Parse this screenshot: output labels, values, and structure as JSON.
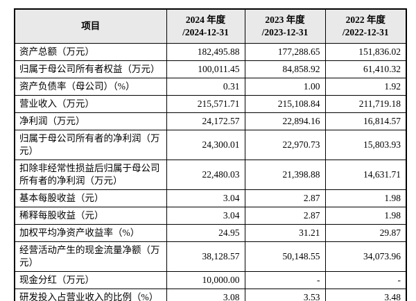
{
  "colors": {
    "header_bg": "#e9e9e9",
    "border": "#000000",
    "text": "#000000",
    "page_bg": "#ffffff"
  },
  "table": {
    "header": {
      "item_label": "项目",
      "year_columns": [
        {
          "line1": "2024 年度",
          "line2": "/2024-12-31"
        },
        {
          "line1": "2023 年度",
          "line2": "/2023-12-31"
        },
        {
          "line1": "2022 年度",
          "line2": "/2022-12-31"
        }
      ]
    },
    "rows": [
      {
        "label": "资产总额（万元）",
        "values": [
          "182,495.88",
          "177,288.65",
          "151,836.02"
        ]
      },
      {
        "label": "归属于母公司所有者权益（万元）",
        "values": [
          "100,011.45",
          "84,858.92",
          "61,410.32"
        ]
      },
      {
        "label": "资产负债率（母公司）（%）",
        "values": [
          "0.31",
          "1.00",
          "1.92"
        ]
      },
      {
        "label": "营业收入（万元）",
        "values": [
          "215,571.71",
          "215,108.84",
          "211,719.18"
        ]
      },
      {
        "label": "净利润（万元）",
        "values": [
          "24,172.57",
          "22,894.16",
          "16,814.57"
        ]
      },
      {
        "label": "归属于母公司所有者的净利润（万元）",
        "values": [
          "24,300.01",
          "22,970.73",
          "15,803.93"
        ]
      },
      {
        "label": "扣除非经常性损益后归属于母公司所有者的净利润（万元）",
        "values": [
          "22,480.03",
          "21,398.88",
          "14,631.71"
        ]
      },
      {
        "label": "基本每股收益（元）",
        "values": [
          "3.04",
          "2.87",
          "1.98"
        ]
      },
      {
        "label": "稀释每股收益（元）",
        "values": [
          "3.04",
          "2.87",
          "1.98"
        ]
      },
      {
        "label": "加权平均净资产收益率（%）",
        "values": [
          "24.95",
          "31.21",
          "29.87"
        ]
      },
      {
        "label": "经营活动产生的现金流量净额（万元）",
        "values": [
          "38,128.57",
          "50,148.55",
          "34,073.96"
        ]
      },
      {
        "label": "现金分红（万元）",
        "values": [
          "10,000.00",
          "-",
          "-"
        ]
      },
      {
        "label": "研发投入占营业收入的比例（%）",
        "values": [
          "3.08",
          "3.53",
          "3.48"
        ]
      }
    ]
  }
}
